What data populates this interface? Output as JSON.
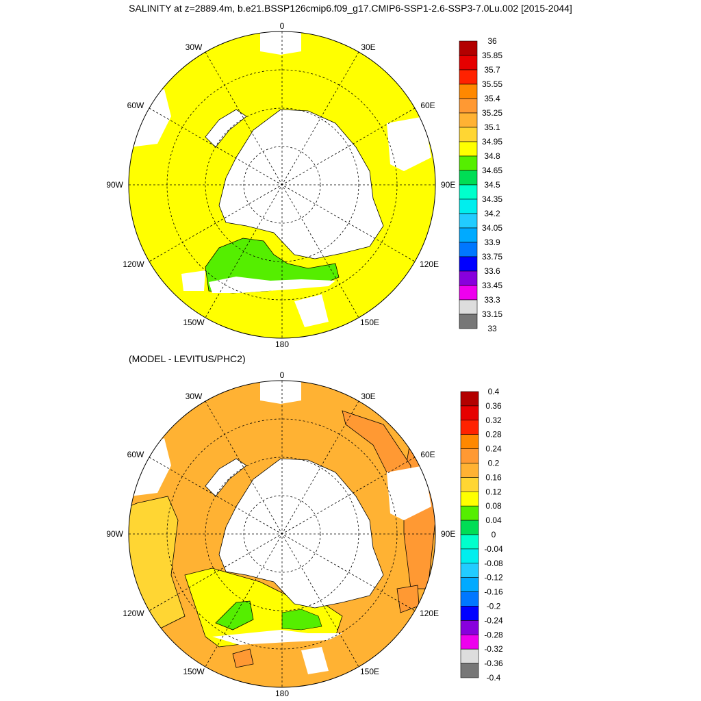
{
  "top_map": {
    "title": "SALINITY at z=2889.4m, b.e21.BSSP126cmip6.f09_g17.CMIP6-SSP1-2.6-SSP3-7.0Lu.002 [2015-2044]",
    "longitude_labels": [
      "0",
      "30E",
      "60E",
      "90E",
      "120E",
      "150E",
      "180",
      "150W",
      "120W",
      "90W",
      "60W",
      "30W"
    ],
    "colorbar": {
      "labels": [
        "36",
        "35.85",
        "35.7",
        "35.55",
        "35.4",
        "35.25",
        "35.1",
        "34.95",
        "34.8",
        "34.65",
        "34.5",
        "34.35",
        "34.2",
        "34.05",
        "33.9",
        "33.75",
        "33.6",
        "33.45",
        "33.3",
        "33.15",
        "33"
      ],
      "colors": [
        "#b30000",
        "#e60000",
        "#ff2200",
        "#ff8800",
        "#ff9933",
        "#ffb233",
        "#ffd633",
        "#ffff00",
        "#55ee00",
        "#00dd55",
        "#00ffcc",
        "#00eeee",
        "#22ccff",
        "#00aaff",
        "#0077ff",
        "#0000ff",
        "#8800dd",
        "#ee00ee",
        "#dddddd",
        "#777777"
      ]
    }
  },
  "bottom_map": {
    "title": "(MODEL - LEVITUS/PHC2)",
    "longitude_labels": [
      "0",
      "30E",
      "60E",
      "90E",
      "120E",
      "150E",
      "180",
      "150W",
      "120W",
      "90W",
      "60W",
      "30W"
    ],
    "colorbar": {
      "labels": [
        "0.4",
        "0.36",
        "0.32",
        "0.28",
        "0.24",
        "0.2",
        "0.16",
        "0.12",
        "0.08",
        "0.04",
        "0",
        "-0.04",
        "-0.08",
        "-0.12",
        "-0.16",
        "-0.2",
        "-0.24",
        "-0.28",
        "-0.32",
        "-0.36",
        "-0.4"
      ],
      "colors": [
        "#b30000",
        "#e60000",
        "#ff2200",
        "#ff8800",
        "#ff9933",
        "#ffb233",
        "#ffd633",
        "#ffff00",
        "#55ee00",
        "#00dd55",
        "#00ffcc",
        "#00eeee",
        "#22ccff",
        "#00aaff",
        "#0077ff",
        "#0000ff",
        "#8800dd",
        "#ee00ee",
        "#dddddd",
        "#777777"
      ]
    }
  }
}
